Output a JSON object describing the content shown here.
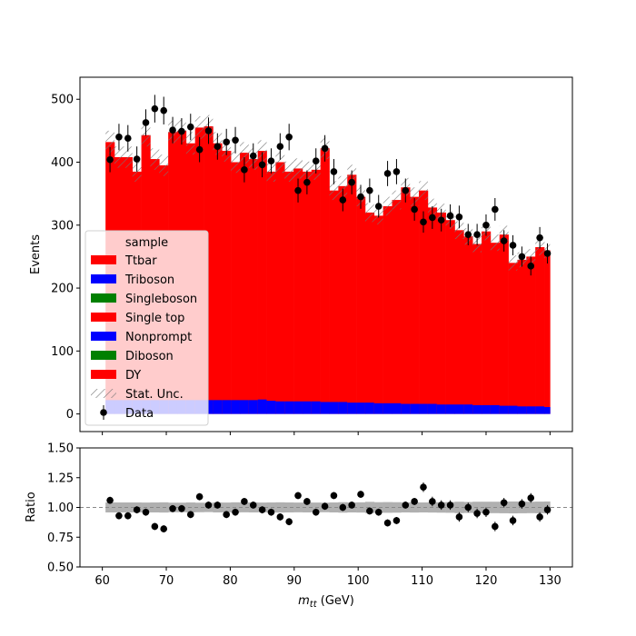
{
  "chart_data": {
    "type": "bar",
    "stacked": true,
    "bin_edges": [
      60.5,
      61.9,
      63.3,
      64.7,
      66.1,
      67.5,
      68.9,
      70.3,
      71.7,
      73.1,
      74.5,
      75.9,
      77.3,
      78.7,
      80.1,
      81.5,
      82.9,
      84.3,
      85.7,
      87.1,
      88.5,
      89.9,
      91.3,
      92.7,
      94.1,
      95.5,
      96.9,
      98.3,
      99.7,
      101.1,
      102.5,
      103.9,
      105.3,
      106.7,
      108.1,
      109.5,
      110.9,
      112.3,
      113.7,
      115.1,
      116.5,
      117.9,
      119.3,
      120.7,
      122.1,
      123.5,
      124.9,
      126.3,
      127.7,
      129.1,
      130.0
    ],
    "xlabel": "m_tt (GeV)",
    "ylabel": "Events",
    "ratio_ylabel": "Ratio",
    "xlim": [
      56.5,
      133.5
    ],
    "ylim": [
      -28,
      535
    ],
    "ratio_ylim": [
      0.5,
      1.5
    ],
    "xticks": [
      60,
      70,
      80,
      90,
      100,
      110,
      120,
      130
    ],
    "yticks": [
      0,
      100,
      200,
      300,
      400,
      500
    ],
    "ratio_yticks": [
      "0.50",
      "0.75",
      "1.00",
      "1.25",
      "1.50"
    ],
    "legend": {
      "title": "sample",
      "placement": "center-left",
      "entries": [
        {
          "label": "Ttbar",
          "color": "#ff0000",
          "kind": "patch"
        },
        {
          "label": "Triboson",
          "color": "#0000ff",
          "kind": "patch"
        },
        {
          "label": "Singleboson",
          "color": "#008000",
          "kind": "patch"
        },
        {
          "label": "Single top",
          "color": "#ff0000",
          "kind": "patch"
        },
        {
          "label": "Nonprompt",
          "color": "#0000ff",
          "kind": "patch"
        },
        {
          "label": "Diboson",
          "color": "#008000",
          "kind": "patch"
        },
        {
          "label": "DY",
          "color": "#ff0000",
          "kind": "patch"
        },
        {
          "label": "Stat. Unc.",
          "color": "#888888",
          "kind": "hatch"
        },
        {
          "label": "Data",
          "color": "#000000",
          "kind": "marker"
        }
      ]
    },
    "mc_total": [
      432,
      408,
      408,
      385,
      443,
      405,
      395,
      448,
      450,
      430,
      455,
      457,
      430,
      418,
      400,
      415,
      405,
      418,
      385,
      400,
      385,
      390,
      385,
      388,
      422,
      355,
      362,
      380,
      345,
      320,
      315,
      330,
      340,
      360,
      345,
      355,
      328,
      320,
      308,
      292,
      282,
      270,
      290,
      272,
      285,
      240,
      245,
      250,
      265,
      260
    ],
    "mc_blue_band": [
      22,
      22,
      22,
      22,
      22,
      22,
      22,
      22,
      22,
      22,
      22,
      22,
      22,
      22,
      22,
      22,
      22,
      23,
      21,
      20,
      20,
      20,
      20,
      20,
      19,
      19,
      19,
      18,
      18,
      18,
      17,
      17,
      17,
      16,
      16,
      16,
      16,
      15,
      15,
      15,
      15,
      14,
      14,
      14,
      13,
      13,
      12,
      12,
      12,
      11
    ],
    "stat_unc": [
      18,
      17,
      17,
      16,
      18,
      17,
      17,
      18,
      18,
      18,
      18,
      18,
      18,
      17,
      17,
      17,
      17,
      17,
      16,
      17,
      16,
      16,
      16,
      16,
      17,
      15,
      16,
      16,
      15,
      15,
      14,
      15,
      15,
      15,
      15,
      15,
      14,
      14,
      14,
      14,
      13,
      13,
      14,
      13,
      14,
      12,
      12,
      12,
      13,
      13
    ],
    "data": {
      "x": [
        61.2,
        62.6,
        64.0,
        65.4,
        66.8,
        68.2,
        69.6,
        71.0,
        72.4,
        73.8,
        75.2,
        76.6,
        78.0,
        79.4,
        80.8,
        82.2,
        83.6,
        85.0,
        86.4,
        87.8,
        89.2,
        90.6,
        92.0,
        93.4,
        94.8,
        96.2,
        97.6,
        99.0,
        100.4,
        101.8,
        103.2,
        104.6,
        106.0,
        107.4,
        108.8,
        110.2,
        111.6,
        113.0,
        114.4,
        115.8,
        117.2,
        118.6,
        120.0,
        121.4,
        122.8,
        124.2,
        125.6,
        127.0,
        128.4,
        129.6
      ],
      "y": [
        404,
        440,
        438,
        405,
        463,
        485,
        482,
        451,
        449,
        456,
        420,
        450,
        425,
        432,
        435,
        388,
        410,
        396,
        402,
        425,
        440,
        355,
        368,
        402,
        422,
        385,
        340,
        368,
        345,
        355,
        330,
        382,
        385,
        355,
        325,
        305,
        312,
        308,
        315,
        313,
        285,
        285,
        300,
        325,
        275,
        268,
        250,
        235,
        280,
        255
      ],
      "yerr": [
        20,
        21,
        21,
        20,
        21,
        22,
        22,
        21,
        21,
        21,
        20,
        21,
        21,
        21,
        21,
        20,
        20,
        20,
        20,
        21,
        21,
        19,
        19,
        20,
        21,
        20,
        18,
        19,
        19,
        19,
        18,
        20,
        20,
        19,
        18,
        17,
        18,
        18,
        18,
        18,
        17,
        17,
        17,
        18,
        17,
        16,
        16,
        15,
        17,
        16
      ]
    },
    "ratio": {
      "y": [
        1.06,
        0.93,
        0.93,
        0.98,
        0.96,
        0.84,
        0.82,
        0.99,
        0.99,
        0.94,
        1.09,
        1.02,
        1.02,
        0.94,
        0.96,
        1.05,
        1.02,
        0.98,
        0.96,
        0.92,
        0.88,
        1.1,
        1.05,
        0.96,
        1.01,
        1.1,
        1.0,
        1.02,
        1.11,
        0.97,
        0.96,
        0.87,
        0.89,
        1.02,
        1.05,
        1.17,
        1.05,
        1.02,
        1.02,
        0.92,
        1.0,
        0.95,
        0.96,
        0.84,
        1.04,
        0.89,
        1.03,
        1.08,
        0.92,
        0.98
      ],
      "yerr": [
        0.03,
        0.03,
        0.03,
        0.03,
        0.03,
        0.03,
        0.03,
        0.03,
        0.03,
        0.03,
        0.03,
        0.03,
        0.03,
        0.03,
        0.03,
        0.03,
        0.03,
        0.03,
        0.03,
        0.03,
        0.03,
        0.03,
        0.03,
        0.03,
        0.03,
        0.03,
        0.03,
        0.03,
        0.03,
        0.03,
        0.03,
        0.03,
        0.03,
        0.03,
        0.03,
        0.04,
        0.04,
        0.04,
        0.04,
        0.04,
        0.04,
        0.04,
        0.04,
        0.04,
        0.04,
        0.04,
        0.04,
        0.04,
        0.04,
        0.04
      ],
      "unc_band": [
        0.042,
        0.042,
        0.042,
        0.042,
        0.041,
        0.042,
        0.043,
        0.04,
        0.04,
        0.042,
        0.04,
        0.039,
        0.042,
        0.041,
        0.043,
        0.041,
        0.042,
        0.041,
        0.042,
        0.043,
        0.042,
        0.041,
        0.042,
        0.041,
        0.04,
        0.042,
        0.044,
        0.042,
        0.043,
        0.047,
        0.044,
        0.045,
        0.044,
        0.042,
        0.043,
        0.042,
        0.043,
        0.044,
        0.045,
        0.048,
        0.046,
        0.048,
        0.048,
        0.048,
        0.049,
        0.05,
        0.049,
        0.048,
        0.049,
        0.05
      ],
      "reference": 1.0
    }
  }
}
